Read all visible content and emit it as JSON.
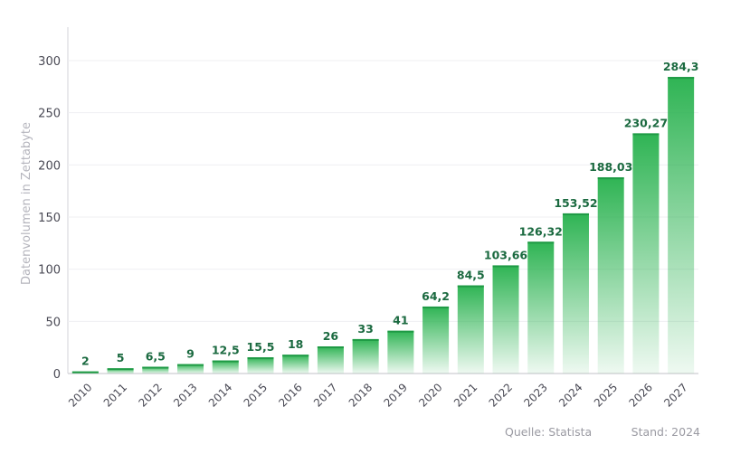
{
  "chart_data": {
    "type": "bar",
    "categories": [
      "2010",
      "2011",
      "2012",
      "2013",
      "2014",
      "2015",
      "2016",
      "2017",
      "2018",
      "2019",
      "2020",
      "2021",
      "2022",
      "2023",
      "2024",
      "2025",
      "2026",
      "2027"
    ],
    "values": [
      2,
      5,
      6.5,
      9,
      12.5,
      15.5,
      18,
      26,
      33,
      41,
      64.2,
      84.5,
      103.66,
      126.32,
      153.52,
      188.03,
      230.27,
      284.3
    ],
    "data_labels": [
      "2",
      "5",
      "6,5",
      "9",
      "12,5",
      "15,5",
      "18",
      "26",
      "33",
      "41",
      "64,2",
      "84,5",
      "103,66",
      "126,32",
      "153,52",
      "188,03",
      "230,27",
      "284,3"
    ],
    "ylabel": "Datenvolumen in Zettabyte",
    "xlabel": "",
    "ylim": [
      0,
      330
    ],
    "yticks": [
      0,
      50,
      100,
      150,
      200,
      250,
      300
    ],
    "grid": true,
    "colors": {
      "bar_top": "#2fb454",
      "bar_bottom": "#e6f6ea",
      "label": "#1b6a40"
    }
  },
  "footer": {
    "source": "Quelle: Statista",
    "stand": "Stand: 2024"
  }
}
